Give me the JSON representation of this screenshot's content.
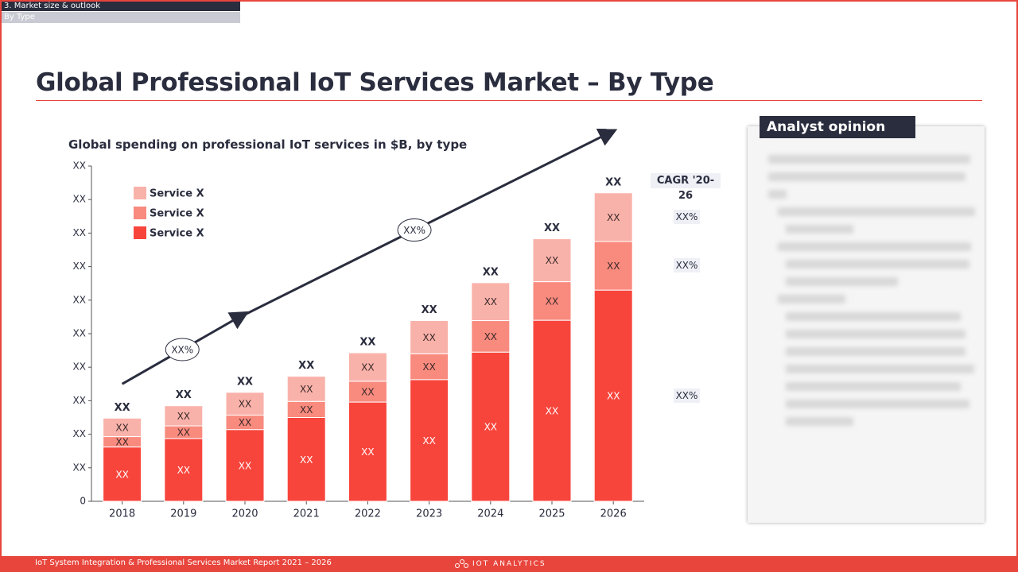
{
  "header": {
    "section": "3. Market size & outlook",
    "subsection": "By Type"
  },
  "page_title": "Global Professional IoT Services Market – By Type",
  "chart_data": {
    "type": "bar",
    "stacked": true,
    "title": "Global spending on professional IoT services in $B, by type",
    "xlabel": "",
    "ylabel": "",
    "categories": [
      "2018",
      "2019",
      "2020",
      "2021",
      "2022",
      "2023",
      "2024",
      "2025",
      "2026"
    ],
    "ylim": [
      0,
      10
    ],
    "y_tick_labels": [
      "0",
      "XX",
      "XX",
      "XX",
      "XX",
      "XX",
      "XX",
      "XX",
      "XX",
      "XX",
      "XX"
    ],
    "series": [
      {
        "name": "Service X",
        "color": "#f9b2aa",
        "values": [
          0.55,
          0.6,
          0.68,
          0.75,
          0.85,
          0.99,
          1.13,
          1.28,
          1.45
        ],
        "labels": [
          "XX",
          "XX",
          "XX",
          "XX",
          "XX",
          "XX",
          "XX",
          "XX",
          "XX"
        ]
      },
      {
        "name": "Service X",
        "color": "#f98a7e",
        "values": [
          0.31,
          0.38,
          0.43,
          0.48,
          0.62,
          0.77,
          0.94,
          1.15,
          1.45
        ],
        "labels": [
          "XX",
          "XX",
          "XX",
          "XX",
          "XX",
          "XX",
          "XX",
          "XX",
          "XX"
        ]
      },
      {
        "name": "Service X",
        "color": "#f8453c",
        "values": [
          1.62,
          1.87,
          2.14,
          2.5,
          2.96,
          3.63,
          4.45,
          5.4,
          6.3
        ],
        "labels": [
          "XX",
          "XX",
          "XX",
          "XX",
          "XX",
          "XX",
          "XX",
          "XX",
          "XX"
        ]
      }
    ],
    "total_labels": [
      "XX",
      "XX",
      "XX",
      "XX",
      "XX",
      "XX",
      "XX",
      "XX",
      "XX"
    ],
    "growth_arrows": [
      {
        "label": "XX%",
        "from": "2018",
        "to": "2020"
      },
      {
        "label": "XX%",
        "from": "2020",
        "to": "2026"
      }
    ],
    "legend": [
      "Service X",
      "Service X",
      "Service X"
    ],
    "legend_position": "top-left",
    "grid": false
  },
  "cagr": {
    "header": "CAGR '20-26",
    "values": [
      "XX%",
      "XX%",
      "XX%"
    ]
  },
  "analyst": {
    "title": "Analyst opinion"
  },
  "footer": {
    "text": "IoT System Integration & Professional Services Market Report 2021 – 2026",
    "logo": "IOT ANALYTICS"
  }
}
